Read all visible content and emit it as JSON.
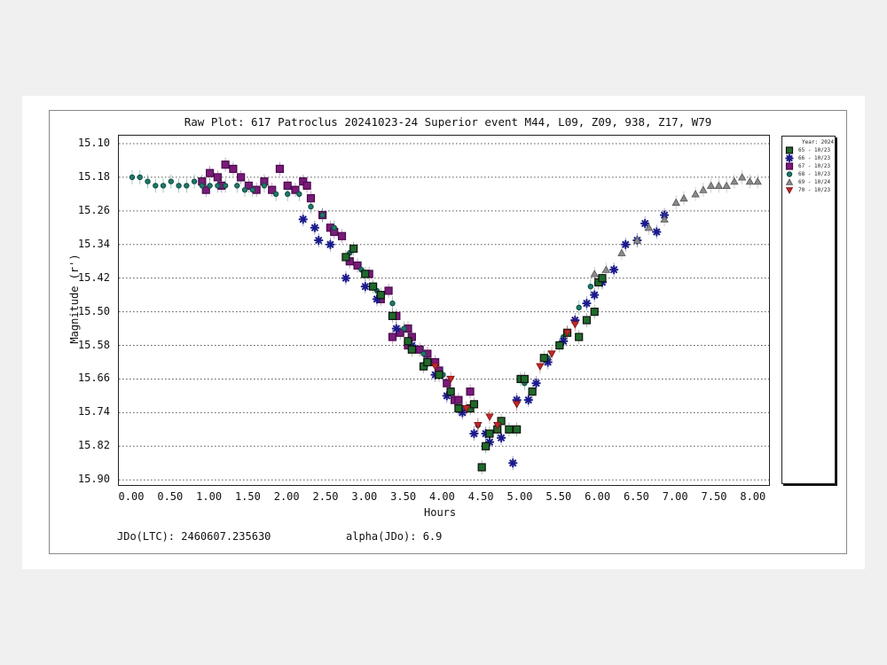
{
  "chart_data": {
    "type": "scatter",
    "title": "Raw Plot: 617 Patroclus 20241023-24 Superior event M44, L09, Z09, 938, Z17, W79",
    "xlabel": "Hours",
    "ylabel": "Magnitude (r')",
    "xlim": [
      -0.15,
      8.2
    ],
    "ylim": [
      15.9,
      15.1
    ],
    "y_inverted": true,
    "grid": "horizontal dotted",
    "legend_position": "right outside",
    "xticks": [
      "0.00",
      "0.50",
      "1.00",
      "1.50",
      "2.00",
      "2.50",
      "3.00",
      "3.50",
      "4.00",
      "4.50",
      "5.00",
      "5.50",
      "6.00",
      "6.50",
      "7.00",
      "7.50",
      "8.00"
    ],
    "yticks": [
      "15.10",
      "15.18",
      "15.26",
      "15.34",
      "15.42",
      "15.50",
      "15.58",
      "15.66",
      "15.74",
      "15.82",
      "15.90"
    ],
    "legend_title": "Year: 2024",
    "series": [
      {
        "name": "65 - 10/23",
        "marker": "square",
        "color": "#1e6b2a",
        "edge": "#111111",
        "points": [
          [
            2.75,
            15.37
          ],
          [
            2.85,
            15.35
          ],
          [
            3.0,
            15.41
          ],
          [
            3.1,
            15.44
          ],
          [
            3.2,
            15.46
          ],
          [
            3.35,
            15.51
          ],
          [
            3.55,
            15.57
          ],
          [
            3.6,
            15.59
          ],
          [
            3.75,
            15.63
          ],
          [
            3.8,
            15.62
          ],
          [
            3.95,
            15.65
          ],
          [
            4.1,
            15.69
          ],
          [
            4.2,
            15.73
          ],
          [
            4.35,
            15.73
          ],
          [
            4.4,
            15.72
          ],
          [
            4.55,
            15.82
          ],
          [
            4.5,
            15.87
          ],
          [
            4.6,
            15.79
          ],
          [
            4.7,
            15.78
          ],
          [
            4.85,
            15.78
          ],
          [
            4.75,
            15.76
          ],
          [
            4.95,
            15.78
          ],
          [
            5.0,
            15.66
          ],
          [
            5.05,
            15.66
          ],
          [
            5.15,
            15.69
          ],
          [
            5.3,
            15.61
          ],
          [
            5.5,
            15.58
          ],
          [
            5.6,
            15.55
          ],
          [
            5.75,
            15.56
          ],
          [
            5.85,
            15.52
          ],
          [
            5.95,
            15.5
          ],
          [
            6.0,
            15.43
          ],
          [
            6.05,
            15.42
          ]
        ]
      },
      {
        "name": "66 - 10/23",
        "marker": "asterisk",
        "color": "#1a1a8c",
        "edge": "#1a1a8c",
        "points": [
          [
            2.2,
            15.28
          ],
          [
            2.35,
            15.3
          ],
          [
            2.4,
            15.33
          ],
          [
            2.55,
            15.34
          ],
          [
            2.75,
            15.42
          ],
          [
            3.0,
            15.44
          ],
          [
            3.15,
            15.47
          ],
          [
            3.4,
            15.54
          ],
          [
            3.6,
            15.58
          ],
          [
            3.8,
            15.62
          ],
          [
            3.9,
            15.65
          ],
          [
            4.05,
            15.7
          ],
          [
            4.25,
            15.74
          ],
          [
            4.4,
            15.79
          ],
          [
            4.55,
            15.79
          ],
          [
            4.6,
            15.81
          ],
          [
            4.75,
            15.8
          ],
          [
            4.9,
            15.86
          ],
          [
            4.95,
            15.71
          ],
          [
            5.1,
            15.71
          ],
          [
            5.2,
            15.67
          ],
          [
            5.35,
            15.62
          ],
          [
            5.55,
            15.57
          ],
          [
            5.7,
            15.52
          ],
          [
            5.85,
            15.48
          ],
          [
            5.95,
            15.46
          ],
          [
            6.05,
            15.43
          ],
          [
            6.2,
            15.4
          ],
          [
            6.35,
            15.34
          ],
          [
            6.5,
            15.33
          ],
          [
            6.6,
            15.29
          ],
          [
            6.75,
            15.31
          ],
          [
            6.85,
            15.27
          ]
        ]
      },
      {
        "name": "67 - 10/23",
        "marker": "square",
        "color": "#7a1a7a",
        "edge": "#4a0a4a",
        "points": [
          [
            0.9,
            15.19
          ],
          [
            0.95,
            15.21
          ],
          [
            1.0,
            15.17
          ],
          [
            1.1,
            15.18
          ],
          [
            1.15,
            15.2
          ],
          [
            1.2,
            15.15
          ],
          [
            1.3,
            15.16
          ],
          [
            1.4,
            15.18
          ],
          [
            1.5,
            15.2
          ],
          [
            1.6,
            15.21
          ],
          [
            1.7,
            15.19
          ],
          [
            1.8,
            15.21
          ],
          [
            1.9,
            15.16
          ],
          [
            2.0,
            15.2
          ],
          [
            2.1,
            15.21
          ],
          [
            2.2,
            15.19
          ],
          [
            2.25,
            15.2
          ],
          [
            2.3,
            15.23
          ],
          [
            2.45,
            15.27
          ],
          [
            2.55,
            15.3
          ],
          [
            2.6,
            15.31
          ],
          [
            2.7,
            15.32
          ],
          [
            2.8,
            15.38
          ],
          [
            2.9,
            15.39
          ],
          [
            3.05,
            15.41
          ],
          [
            3.2,
            15.47
          ],
          [
            3.3,
            15.45
          ],
          [
            3.4,
            15.51
          ],
          [
            3.45,
            15.55
          ],
          [
            3.55,
            15.54
          ],
          [
            3.6,
            15.56
          ],
          [
            3.7,
            15.59
          ],
          [
            3.8,
            15.6
          ],
          [
            3.9,
            15.62
          ],
          [
            3.95,
            15.64
          ],
          [
            4.05,
            15.67
          ],
          [
            4.15,
            15.71
          ],
          [
            4.35,
            15.69
          ],
          [
            4.2,
            15.71
          ],
          [
            3.55,
            15.58
          ],
          [
            3.35,
            15.56
          ]
        ]
      },
      {
        "name": "68 - 10/23",
        "marker": "circle",
        "color": "#1f7a6a",
        "edge": "#0f4a40",
        "points": [
          [
            0.0,
            15.18
          ],
          [
            0.1,
            15.18
          ],
          [
            0.2,
            15.19
          ],
          [
            0.3,
            15.2
          ],
          [
            0.4,
            15.2
          ],
          [
            0.5,
            15.19
          ],
          [
            0.6,
            15.2
          ],
          [
            0.7,
            15.2
          ],
          [
            0.8,
            15.19
          ],
          [
            0.9,
            15.2
          ],
          [
            1.0,
            15.2
          ],
          [
            1.1,
            15.2
          ],
          [
            1.2,
            15.2
          ],
          [
            1.35,
            15.2
          ],
          [
            1.45,
            15.21
          ],
          [
            1.55,
            15.21
          ],
          [
            1.7,
            15.2
          ],
          [
            1.85,
            15.22
          ],
          [
            2.0,
            15.22
          ],
          [
            2.15,
            15.22
          ],
          [
            2.3,
            15.25
          ],
          [
            2.45,
            15.27
          ],
          [
            2.6,
            15.3
          ],
          [
            2.8,
            15.36
          ],
          [
            2.95,
            15.4
          ],
          [
            3.15,
            15.45
          ],
          [
            3.35,
            15.48
          ],
          [
            3.5,
            15.54
          ],
          [
            3.75,
            15.6
          ],
          [
            4.0,
            15.65
          ],
          [
            4.25,
            15.73
          ],
          [
            4.45,
            15.77
          ],
          [
            5.05,
            15.67
          ],
          [
            5.35,
            15.61
          ],
          [
            5.55,
            15.56
          ],
          [
            5.75,
            15.49
          ],
          [
            5.9,
            15.44
          ]
        ]
      },
      {
        "name": "69 - 10/24",
        "marker": "triangle-up",
        "color": "#8a8a8a",
        "edge": "#555555",
        "points": [
          [
            5.95,
            15.41
          ],
          [
            6.1,
            15.4
          ],
          [
            6.3,
            15.36
          ],
          [
            6.5,
            15.33
          ],
          [
            6.65,
            15.3
          ],
          [
            6.85,
            15.28
          ],
          [
            7.0,
            15.24
          ],
          [
            7.1,
            15.23
          ],
          [
            7.25,
            15.22
          ],
          [
            7.35,
            15.21
          ],
          [
            7.45,
            15.2
          ],
          [
            7.55,
            15.2
          ],
          [
            7.65,
            15.2
          ],
          [
            7.75,
            15.19
          ],
          [
            7.85,
            15.18
          ],
          [
            7.95,
            15.19
          ],
          [
            8.05,
            15.19
          ]
        ]
      },
      {
        "name": "70 - 10/23",
        "marker": "triangle-down",
        "color": "#c0282a",
        "edge": "#7a1010",
        "points": [
          [
            3.9,
            15.63
          ],
          [
            4.1,
            15.66
          ],
          [
            4.3,
            15.73
          ],
          [
            4.45,
            15.77
          ],
          [
            4.6,
            15.75
          ],
          [
            4.7,
            15.77
          ],
          [
            4.95,
            15.72
          ],
          [
            5.25,
            15.63
          ],
          [
            5.4,
            15.6
          ],
          [
            5.6,
            15.55
          ],
          [
            5.7,
            15.53
          ]
        ]
      }
    ]
  },
  "footer": {
    "jdo_label": "JDo(LTC): 2460607.235630",
    "alpha_label": "alpha(JDo): 6.9"
  },
  "colors": {
    "background": "#f0f0f0",
    "panel": "#ffffff",
    "grid": "#555555"
  }
}
